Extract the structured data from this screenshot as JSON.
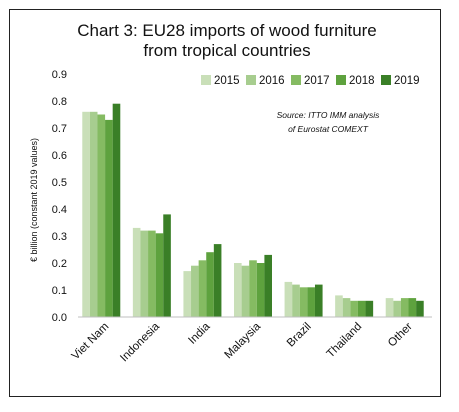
{
  "chart_data": {
    "type": "bar",
    "title_line1": "Chart 3: EU28 imports of wood furniture",
    "title_line2": "from tropical countries",
    "ylabel": "€ billion (constant 2019 values)",
    "ylim": [
      0,
      0.9
    ],
    "yticks": [
      "0.0",
      "0.1",
      "0.2",
      "0.3",
      "0.4",
      "0.5",
      "0.6",
      "0.7",
      "0.8",
      "0.9"
    ],
    "grid": false,
    "legend_position": "top-right",
    "source_line1": "Source: ITTO IMM analysis",
    "source_line2": "of Eurostat COMEXT",
    "categories": [
      "Viet Nam",
      "Indonesia",
      "India",
      "Malaysia",
      "Brazil",
      "Thailand",
      "Other"
    ],
    "series": [
      {
        "name": "2015",
        "color": "#c9dfb8",
        "values": [
          0.76,
          0.33,
          0.17,
          0.2,
          0.13,
          0.08,
          0.07
        ]
      },
      {
        "name": "2016",
        "color": "#a7cd8f",
        "values": [
          0.76,
          0.32,
          0.19,
          0.19,
          0.12,
          0.07,
          0.06
        ]
      },
      {
        "name": "2017",
        "color": "#85bb62",
        "values": [
          0.75,
          0.32,
          0.21,
          0.21,
          0.11,
          0.06,
          0.07
        ]
      },
      {
        "name": "2018",
        "color": "#5ea23e",
        "values": [
          0.73,
          0.31,
          0.24,
          0.2,
          0.11,
          0.06,
          0.07
        ]
      },
      {
        "name": "2019",
        "color": "#3a7f27",
        "values": [
          0.79,
          0.38,
          0.27,
          0.23,
          0.12,
          0.06,
          0.06
        ]
      }
    ]
  }
}
